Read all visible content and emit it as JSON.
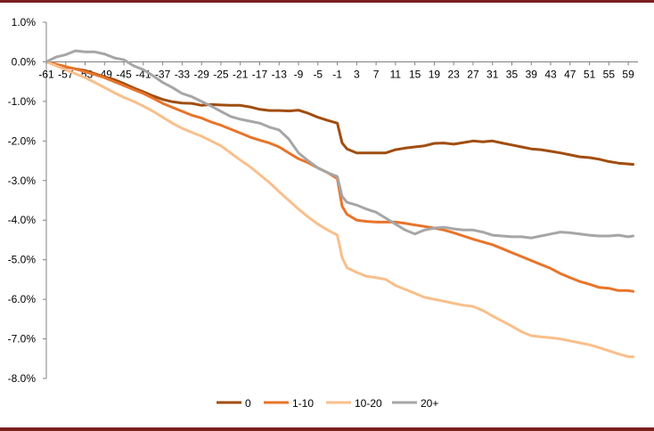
{
  "chart_data": {
    "type": "line",
    "title": "",
    "xlabel": "",
    "ylabel": "",
    "x_range": [
      -61,
      61
    ],
    "ylim": [
      -8.0,
      1.0
    ],
    "y_ticks": [
      "1.0%",
      "0.0%",
      "-1.0%",
      "-2.0%",
      "-3.0%",
      "-4.0%",
      "-5.0%",
      "-6.0%",
      "-7.0%",
      "-8.0%"
    ],
    "y_tick_values": [
      1,
      0,
      -1,
      -2,
      -3,
      -4,
      -5,
      -6,
      -7,
      -8
    ],
    "x_ticks": [
      "-61",
      "-57",
      "-53",
      "-49",
      "-45",
      "-41",
      "-37",
      "-33",
      "-29",
      "-25",
      "-21",
      "-17",
      "-13",
      "-9",
      "-5",
      "-1",
      "3",
      "7",
      "11",
      "15",
      "19",
      "23",
      "27",
      "31",
      "35",
      "39",
      "43",
      "47",
      "51",
      "55",
      "59"
    ],
    "x_tick_values": [
      -61,
      -57,
      -53,
      -49,
      -45,
      -41,
      -37,
      -33,
      -29,
      -25,
      -21,
      -17,
      -13,
      -9,
      -5,
      -1,
      3,
      7,
      11,
      15,
      19,
      23,
      27,
      31,
      35,
      39,
      43,
      47,
      51,
      55,
      59
    ],
    "grid": false,
    "legend_position": "bottom",
    "series": [
      {
        "name": "0",
        "color": "#a14d0f",
        "points": [
          [
            -61,
            0.0
          ],
          [
            -59,
            -0.08
          ],
          [
            -57,
            -0.13
          ],
          [
            -55,
            -0.18
          ],
          [
            -53,
            -0.22
          ],
          [
            -51,
            -0.3
          ],
          [
            -49,
            -0.38
          ],
          [
            -47,
            -0.45
          ],
          [
            -45,
            -0.55
          ],
          [
            -43,
            -0.66
          ],
          [
            -41,
            -0.76
          ],
          [
            -39,
            -0.86
          ],
          [
            -37,
            -0.95
          ],
          [
            -35,
            -1.01
          ],
          [
            -33,
            -1.04
          ],
          [
            -31,
            -1.05
          ],
          [
            -29,
            -1.1
          ],
          [
            -27,
            -1.08
          ],
          [
            -25,
            -1.09
          ],
          [
            -23,
            -1.1
          ],
          [
            -21,
            -1.1
          ],
          [
            -19,
            -1.14
          ],
          [
            -17,
            -1.2
          ],
          [
            -15,
            -1.23
          ],
          [
            -13,
            -1.23
          ],
          [
            -11,
            -1.24
          ],
          [
            -9,
            -1.22
          ],
          [
            -7,
            -1.3
          ],
          [
            -5,
            -1.4
          ],
          [
            -3,
            -1.48
          ],
          [
            -1,
            -1.55
          ],
          [
            0,
            -2.05
          ],
          [
            1,
            -2.2
          ],
          [
            3,
            -2.3
          ],
          [
            5,
            -2.3
          ],
          [
            7,
            -2.3
          ],
          [
            9,
            -2.3
          ],
          [
            11,
            -2.22
          ],
          [
            13,
            -2.18
          ],
          [
            15,
            -2.15
          ],
          [
            17,
            -2.12
          ],
          [
            19,
            -2.06
          ],
          [
            21,
            -2.05
          ],
          [
            23,
            -2.08
          ],
          [
            25,
            -2.04
          ],
          [
            27,
            -2.0
          ],
          [
            29,
            -2.02
          ],
          [
            31,
            -2.0
          ],
          [
            33,
            -2.05
          ],
          [
            35,
            -2.1
          ],
          [
            37,
            -2.15
          ],
          [
            39,
            -2.2
          ],
          [
            41,
            -2.22
          ],
          [
            43,
            -2.26
          ],
          [
            45,
            -2.3
          ],
          [
            47,
            -2.35
          ],
          [
            49,
            -2.4
          ],
          [
            51,
            -2.42
          ],
          [
            53,
            -2.46
          ],
          [
            55,
            -2.52
          ],
          [
            57,
            -2.56
          ],
          [
            59,
            -2.58
          ],
          [
            60,
            -2.59
          ]
        ]
      },
      {
        "name": "1-10",
        "color": "#e8742a",
        "points": [
          [
            -61,
            0.0
          ],
          [
            -59,
            -0.06
          ],
          [
            -57,
            -0.12
          ],
          [
            -55,
            -0.18
          ],
          [
            -53,
            -0.25
          ],
          [
            -51,
            -0.32
          ],
          [
            -49,
            -0.4
          ],
          [
            -47,
            -0.5
          ],
          [
            -45,
            -0.6
          ],
          [
            -43,
            -0.7
          ],
          [
            -41,
            -0.8
          ],
          [
            -39,
            -0.92
          ],
          [
            -37,
            -1.05
          ],
          [
            -35,
            -1.15
          ],
          [
            -33,
            -1.25
          ],
          [
            -31,
            -1.35
          ],
          [
            -29,
            -1.42
          ],
          [
            -27,
            -1.52
          ],
          [
            -25,
            -1.6
          ],
          [
            -23,
            -1.7
          ],
          [
            -21,
            -1.8
          ],
          [
            -19,
            -1.9
          ],
          [
            -17,
            -1.98
          ],
          [
            -15,
            -2.05
          ],
          [
            -13,
            -2.15
          ],
          [
            -11,
            -2.3
          ],
          [
            -9,
            -2.45
          ],
          [
            -7,
            -2.55
          ],
          [
            -5,
            -2.68
          ],
          [
            -3,
            -2.8
          ],
          [
            -1,
            -2.95
          ],
          [
            0,
            -3.65
          ],
          [
            1,
            -3.85
          ],
          [
            3,
            -4.0
          ],
          [
            5,
            -4.03
          ],
          [
            7,
            -4.05
          ],
          [
            9,
            -4.05
          ],
          [
            11,
            -4.05
          ],
          [
            13,
            -4.08
          ],
          [
            15,
            -4.12
          ],
          [
            17,
            -4.16
          ],
          [
            19,
            -4.2
          ],
          [
            21,
            -4.25
          ],
          [
            23,
            -4.32
          ],
          [
            25,
            -4.4
          ],
          [
            27,
            -4.48
          ],
          [
            29,
            -4.55
          ],
          [
            31,
            -4.62
          ],
          [
            33,
            -4.72
          ],
          [
            35,
            -4.82
          ],
          [
            37,
            -4.92
          ],
          [
            39,
            -5.02
          ],
          [
            41,
            -5.12
          ],
          [
            43,
            -5.22
          ],
          [
            45,
            -5.35
          ],
          [
            47,
            -5.45
          ],
          [
            49,
            -5.55
          ],
          [
            51,
            -5.62
          ],
          [
            53,
            -5.7
          ],
          [
            55,
            -5.72
          ],
          [
            57,
            -5.78
          ],
          [
            59,
            -5.78
          ],
          [
            60,
            -5.8
          ]
        ]
      },
      {
        "name": "10-20",
        "color": "#f9bf8b",
        "points": [
          [
            -61,
            0.0
          ],
          [
            -59,
            -0.1
          ],
          [
            -57,
            -0.2
          ],
          [
            -55,
            -0.3
          ],
          [
            -53,
            -0.4
          ],
          [
            -51,
            -0.52
          ],
          [
            -49,
            -0.65
          ],
          [
            -47,
            -0.78
          ],
          [
            -45,
            -0.9
          ],
          [
            -43,
            -1.0
          ],
          [
            -41,
            -1.12
          ],
          [
            -39,
            -1.25
          ],
          [
            -37,
            -1.4
          ],
          [
            -35,
            -1.55
          ],
          [
            -33,
            -1.68
          ],
          [
            -31,
            -1.78
          ],
          [
            -29,
            -1.88
          ],
          [
            -27,
            -2.0
          ],
          [
            -25,
            -2.12
          ],
          [
            -23,
            -2.3
          ],
          [
            -21,
            -2.48
          ],
          [
            -19,
            -2.65
          ],
          [
            -17,
            -2.85
          ],
          [
            -15,
            -3.05
          ],
          [
            -13,
            -3.28
          ],
          [
            -11,
            -3.5
          ],
          [
            -9,
            -3.72
          ],
          [
            -7,
            -3.92
          ],
          [
            -5,
            -4.1
          ],
          [
            -3,
            -4.25
          ],
          [
            -1,
            -4.38
          ],
          [
            0,
            -4.95
          ],
          [
            1,
            -5.2
          ],
          [
            3,
            -5.32
          ],
          [
            5,
            -5.42
          ],
          [
            7,
            -5.45
          ],
          [
            9,
            -5.5
          ],
          [
            11,
            -5.65
          ],
          [
            13,
            -5.75
          ],
          [
            15,
            -5.85
          ],
          [
            17,
            -5.95
          ],
          [
            19,
            -6.0
          ],
          [
            21,
            -6.05
          ],
          [
            23,
            -6.1
          ],
          [
            25,
            -6.15
          ],
          [
            27,
            -6.18
          ],
          [
            29,
            -6.28
          ],
          [
            31,
            -6.42
          ],
          [
            33,
            -6.55
          ],
          [
            35,
            -6.68
          ],
          [
            37,
            -6.82
          ],
          [
            39,
            -6.92
          ],
          [
            41,
            -6.95
          ],
          [
            43,
            -6.97
          ],
          [
            45,
            -7.0
          ],
          [
            47,
            -7.05
          ],
          [
            49,
            -7.1
          ],
          [
            51,
            -7.15
          ],
          [
            53,
            -7.22
          ],
          [
            55,
            -7.3
          ],
          [
            57,
            -7.38
          ],
          [
            59,
            -7.45
          ],
          [
            60,
            -7.45
          ]
        ]
      },
      {
        "name": "20+",
        "color": "#a6a6a6",
        "points": [
          [
            -61,
            0.0
          ],
          [
            -59,
            0.12
          ],
          [
            -57,
            0.18
          ],
          [
            -55,
            0.28
          ],
          [
            -53,
            0.25
          ],
          [
            -51,
            0.25
          ],
          [
            -49,
            0.2
          ],
          [
            -47,
            0.1
          ],
          [
            -45,
            0.05
          ],
          [
            -43,
            -0.1
          ],
          [
            -41,
            -0.2
          ],
          [
            -39,
            -0.35
          ],
          [
            -37,
            -0.52
          ],
          [
            -35,
            -0.65
          ],
          [
            -33,
            -0.8
          ],
          [
            -31,
            -0.88
          ],
          [
            -29,
            -1.0
          ],
          [
            -27,
            -1.12
          ],
          [
            -25,
            -1.25
          ],
          [
            -23,
            -1.38
          ],
          [
            -21,
            -1.45
          ],
          [
            -19,
            -1.5
          ],
          [
            -17,
            -1.55
          ],
          [
            -15,
            -1.65
          ],
          [
            -13,
            -1.72
          ],
          [
            -11,
            -1.95
          ],
          [
            -9,
            -2.3
          ],
          [
            -7,
            -2.5
          ],
          [
            -5,
            -2.68
          ],
          [
            -3,
            -2.8
          ],
          [
            -1,
            -2.9
          ],
          [
            0,
            -3.4
          ],
          [
            1,
            -3.55
          ],
          [
            3,
            -3.62
          ],
          [
            5,
            -3.72
          ],
          [
            7,
            -3.8
          ],
          [
            9,
            -3.95
          ],
          [
            11,
            -4.1
          ],
          [
            13,
            -4.25
          ],
          [
            15,
            -4.35
          ],
          [
            17,
            -4.25
          ],
          [
            19,
            -4.2
          ],
          [
            21,
            -4.18
          ],
          [
            23,
            -4.22
          ],
          [
            25,
            -4.25
          ],
          [
            27,
            -4.25
          ],
          [
            29,
            -4.3
          ],
          [
            31,
            -4.38
          ],
          [
            33,
            -4.4
          ],
          [
            35,
            -4.42
          ],
          [
            37,
            -4.42
          ],
          [
            39,
            -4.45
          ],
          [
            41,
            -4.4
          ],
          [
            43,
            -4.35
          ],
          [
            45,
            -4.3
          ],
          [
            47,
            -4.32
          ],
          [
            49,
            -4.35
          ],
          [
            51,
            -4.38
          ],
          [
            53,
            -4.4
          ],
          [
            55,
            -4.4
          ],
          [
            57,
            -4.38
          ],
          [
            59,
            -4.42
          ],
          [
            60,
            -4.4
          ]
        ]
      }
    ]
  }
}
